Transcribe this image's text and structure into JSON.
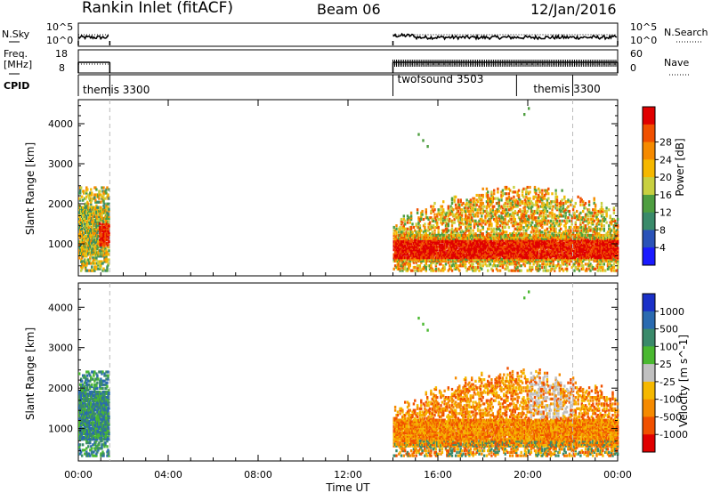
{
  "header": {
    "station": "Rankin Inlet (fitACF)",
    "beam": "Beam 06",
    "date": "12/Jan/2016"
  },
  "status_panels": {
    "nsky": {
      "label": "N.Sky",
      "ticks": [
        "10^5",
        "10^0"
      ],
      "right_label": "N.Search",
      "right_ticks": [
        "10^5",
        "10^0"
      ]
    },
    "freq": {
      "label_lines": [
        "Freq.",
        "[MHz]"
      ],
      "ticks": [
        "18",
        "8"
      ],
      "right_label": "Nave",
      "right_ticks": [
        "60",
        "0"
      ]
    },
    "cpid": {
      "label": "CPID",
      "segments": [
        {
          "name": "themis 3300",
          "start_hour": 0.0,
          "end_hour": 1.4
        },
        {
          "name": "twofsound 3503",
          "start_hour": 14.0,
          "end_hour": 19.5
        },
        {
          "name": "themis 3300",
          "start_hour": 19.5,
          "end_hour": 22.0
        }
      ]
    }
  },
  "chart_data": [
    {
      "type": "heatmap",
      "panel": "power",
      "ylabel": "Slant Range [km]",
      "yticks": [
        "1000",
        "2000",
        "3000",
        "4000"
      ],
      "ylim": [
        200,
        4600
      ],
      "x": [
        "00:00",
        "04:00",
        "08:00",
        "12:00",
        "16:00",
        "20:00",
        "00:00"
      ],
      "xlim_hours": [
        0,
        24
      ],
      "data_windows_hours": [
        [
          0.0,
          1.4
        ],
        [
          14.0,
          24.0
        ]
      ],
      "colorbar": {
        "label": "Power [dB]",
        "ticks": [
          "4",
          "8",
          "12",
          "16",
          "20",
          "24",
          "28"
        ],
        "range": [
          0,
          30
        ],
        "colors": [
          "#1a1aff",
          "#2a52b8",
          "#3a8a6a",
          "#4e9e40",
          "#c8d040",
          "#f5b800",
          "#f58a00",
          "#f05000",
          "#e00000"
        ]
      }
    },
    {
      "type": "heatmap",
      "panel": "velocity",
      "ylabel": "Slant Range [km]",
      "yticks": [
        "1000",
        "2000",
        "3000",
        "4000"
      ],
      "ylim": [
        200,
        4600
      ],
      "x": [
        "00:00",
        "04:00",
        "08:00",
        "12:00",
        "16:00",
        "20:00",
        "00:00"
      ],
      "xlim_hours": [
        0,
        24
      ],
      "xlabel": "Time UT",
      "data_windows_hours": [
        [
          0.0,
          1.4
        ],
        [
          14.0,
          24.0
        ]
      ],
      "colorbar": {
        "label": "Velocity [m s^-1]",
        "ticks": [
          "1000",
          "500",
          "100",
          "25",
          "-25",
          "-100",
          "-500",
          "-1000"
        ],
        "colors": [
          "#1a30c8",
          "#2a6ab0",
          "#3a8a6a",
          "#4ab830",
          "#c0c0c0",
          "#f5b800",
          "#f58a00",
          "#f05000",
          "#e00000"
        ]
      }
    }
  ],
  "scan_markers_hours": [
    1.4,
    22.0
  ]
}
